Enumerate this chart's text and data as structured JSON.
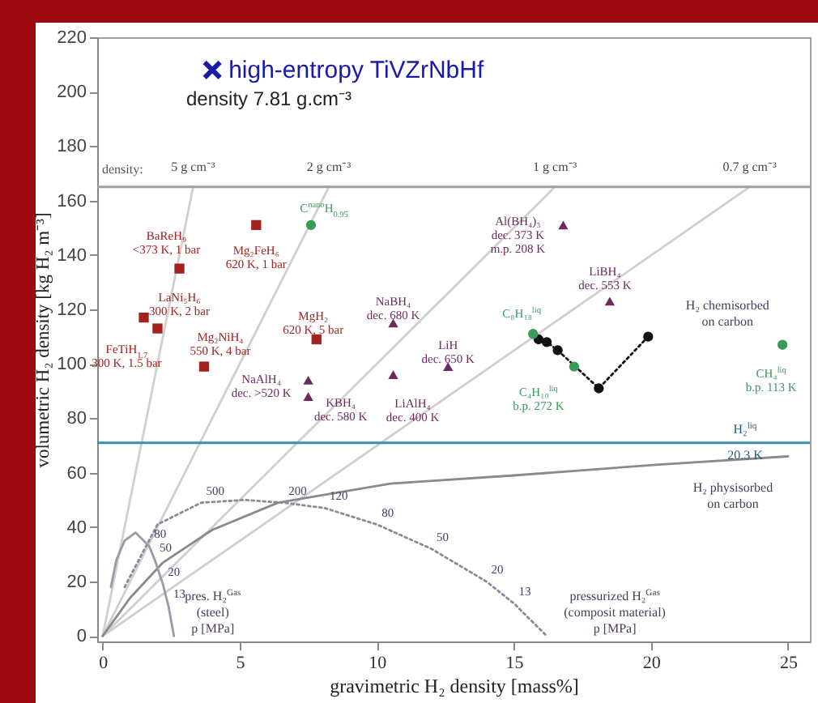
{
  "chart_data": {
    "type": "scatter",
    "xlabel": "gravimetric H₂ density [mass%]",
    "ylabel": "volumetric H₂ density [kg H₂ m⁻³]",
    "xlim": [
      -0.2,
      25.8
    ],
    "ylim": [
      -2,
      220
    ],
    "xticks": [
      0,
      5,
      10,
      15,
      20,
      25
    ],
    "yticks": [
      0,
      20,
      40,
      60,
      80,
      100,
      120,
      140,
      160,
      180,
      200,
      220
    ],
    "series": [
      {
        "type": "line",
        "name": "5 g cm⁻³",
        "color": "#cfcfcf",
        "x": [
          0,
          3.3
        ],
        "values": [
          0,
          165
        ]
      },
      {
        "type": "line",
        "name": "2 g cm⁻³",
        "color": "#cfcfcf",
        "x": [
          0,
          8.25
        ],
        "values": [
          0,
          165
        ]
      },
      {
        "type": "line",
        "name": "1 g cm⁻³",
        "color": "#cfcfcf",
        "x": [
          0,
          16.5
        ],
        "values": [
          0,
          165
        ]
      },
      {
        "type": "line",
        "name": "0.7 g cm⁻³",
        "color": "#cfcfcf",
        "x": [
          0,
          23.6
        ],
        "values": [
          0,
          165
        ]
      },
      {
        "type": "line",
        "name": "H₂ physisorbed on carbon",
        "color": "#8a8a8a",
        "x": [
          0,
          1,
          2.2,
          4,
          6.4,
          10.5,
          15,
          20.3,
          25
        ],
        "values": [
          0,
          14,
          27,
          39,
          49,
          56,
          59,
          63,
          66
        ]
      },
      {
        "type": "line",
        "name": "pressurized H₂$^{Gas}$ (composit material) p [MPa]",
        "color": "#8a8a9a",
        "line_style": "dotted",
        "x": [
          0.8,
          2,
          3.6,
          5.2,
          6.6,
          8.1,
          10,
          12,
          14,
          15,
          16.2
        ],
        "values": [
          18,
          41,
          49,
          50,
          49,
          47,
          41,
          32,
          20,
          12,
          0
        ]
      },
      {
        "type": "line",
        "name": "pres. H₂$^{Gas}$ (steel) p [MPa]",
        "color": "#9a9aa8",
        "x": [
          0.3,
          0.5,
          0.8,
          1.2,
          1.7,
          1.9,
          2.2,
          2.4,
          2.6
        ],
        "values": [
          18,
          28,
          35,
          38,
          33,
          28,
          19,
          11,
          0
        ]
      },
      {
        "type": "line",
        "name": "H₂ chemisorbed on carbon",
        "color": "#111111",
        "line_style": "dotted",
        "marker": "circle",
        "x": [
          15.9,
          16.2,
          16.6,
          18.1,
          19.9
        ],
        "values": [
          109,
          108,
          105,
          91,
          110
        ]
      },
      {
        "marker": "square",
        "color": "#a3211f",
        "x": [
          2.8,
          5.6,
          1.5,
          2.0,
          3.7,
          7.8
        ],
        "values": [
          135,
          151,
          117,
          113,
          99,
          109
        ]
      },
      {
        "marker": "triangle",
        "color": "#6e2a5e",
        "x": [
          7.5,
          7.5,
          10.6,
          10.6,
          16.8,
          18.5,
          12.6
        ],
        "values": [
          94,
          88,
          115,
          96,
          151,
          123,
          99
        ]
      },
      {
        "marker": "circle",
        "color": "#3a9a5a",
        "x": [
          7.6,
          15.7,
          17.2,
          24.8
        ],
        "values": [
          151,
          111,
          99,
          107
        ]
      },
      {
        "marker": "cross",
        "color": "#1a1aa8",
        "name": "high-entropy TiVZrNbHf",
        "x": [
          4.0
        ],
        "values": [
          208
        ]
      }
    ],
    "ref_lines": [
      {
        "axis": "y",
        "value": 71,
        "color": "#3a90b0",
        "label": "H₂$^{liq}$ 20.3 K"
      },
      {
        "axis": "y",
        "value": 165,
        "color": "#a0a0a0"
      }
    ],
    "annotations": [
      "density 7.81 g.cm⁻³",
      "density:",
      {
        "text": "500",
        "x": 3.6,
        "y": 49
      },
      {
        "text": "200",
        "x": 6.6,
        "y": 49
      },
      {
        "text": "120",
        "x": 8.1,
        "y": 47
      },
      {
        "text": "80",
        "x": 10,
        "y": 41
      },
      {
        "text": "50",
        "x": 12,
        "y": 32
      },
      {
        "text": "20",
        "x": 14,
        "y": 20
      },
      {
        "text": "13",
        "x": 15,
        "y": 12
      },
      {
        "text": "80",
        "x": 1.7,
        "y": 33
      },
      {
        "text": "50",
        "x": 1.9,
        "y": 28
      },
      {
        "text": "20",
        "x": 2.2,
        "y": 19
      },
      {
        "text": "13",
        "x": 2.4,
        "y": 11
      },
      {
        "text": "BaReH₉\n<373 K, 1 bar",
        "x": 2.8,
        "y": 135
      },
      {
        "text": "Mg₂FeH₆\n620 K, 1 bar",
        "x": 5.6,
        "y": 151
      },
      {
        "text": "LaNi₅H₆\n300 K, 2 bar",
        "x": 1.5,
        "y": 117
      },
      {
        "text": "FeTiH$_{1.7}$\n300 K, 1.5 bar",
        "x": 2.0,
        "y": 113
      },
      {
        "text": "Mg₂NiH₄\n550 K, 4 bar",
        "x": 3.7,
        "y": 99
      },
      {
        "text": "MgH₂\n620 K, 5 bar",
        "x": 7.8,
        "y": 109
      },
      {
        "text": "NaAlH₄\ndec. >520 K",
        "x": 7.5,
        "y": 94
      },
      {
        "text": "KBH₄\ndec. 580 K",
        "x": 7.5,
        "y": 88
      },
      {
        "text": "NaBH₄\ndec. 680 K",
        "x": 10.6,
        "y": 115
      },
      {
        "text": "LiAlH₄\ndec. 400 K",
        "x": 10.6,
        "y": 96
      },
      {
        "text": "Al(BH₄)₃\ndec. 373 K\nm.p. 208 K",
        "x": 16.8,
        "y": 151
      },
      {
        "text": "LiBH₄\ndec. 553 K",
        "x": 18.5,
        "y": 123
      },
      {
        "text": "LiH\ndec. 650 K",
        "x": 12.6,
        "y": 99
      },
      {
        "text": "C$^{nano}$H$_{0.95}$",
        "x": 7.6,
        "y": 151
      },
      {
        "text": "C₈H₁₈$^{liq}$",
        "x": 15.7,
        "y": 111
      },
      {
        "text": "C₄H₁₀$^{liq}$\nb.p. 272 K",
        "x": 17.2,
        "y": 99
      },
      {
        "text": "CH₄$^{liq}$\nb.p. 113 K",
        "x": 24.8,
        "y": 107
      }
    ]
  }
}
